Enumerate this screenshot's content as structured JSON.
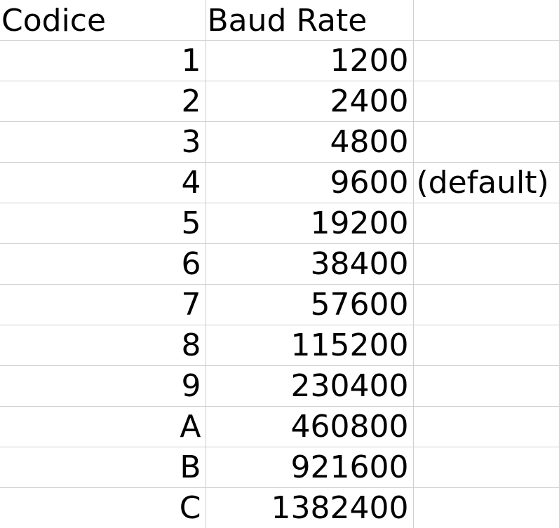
{
  "headers": {
    "code": "Codice",
    "baud": "Baud Rate",
    "note": ""
  },
  "rows": [
    {
      "code": "1",
      "baud": "1200",
      "note": ""
    },
    {
      "code": "2",
      "baud": "2400",
      "note": ""
    },
    {
      "code": "3",
      "baud": "4800",
      "note": ""
    },
    {
      "code": "4",
      "baud": "9600",
      "note": "(default)"
    },
    {
      "code": "5",
      "baud": "19200",
      "note": ""
    },
    {
      "code": "6",
      "baud": "38400",
      "note": ""
    },
    {
      "code": "7",
      "baud": "57600",
      "note": ""
    },
    {
      "code": "8",
      "baud": "115200",
      "note": ""
    },
    {
      "code": "9",
      "baud": "230400",
      "note": ""
    },
    {
      "code": "A",
      "baud": "460800",
      "note": ""
    },
    {
      "code": "B",
      "baud": "921600",
      "note": ""
    },
    {
      "code": "C",
      "baud": "1382400",
      "note": ""
    }
  ]
}
